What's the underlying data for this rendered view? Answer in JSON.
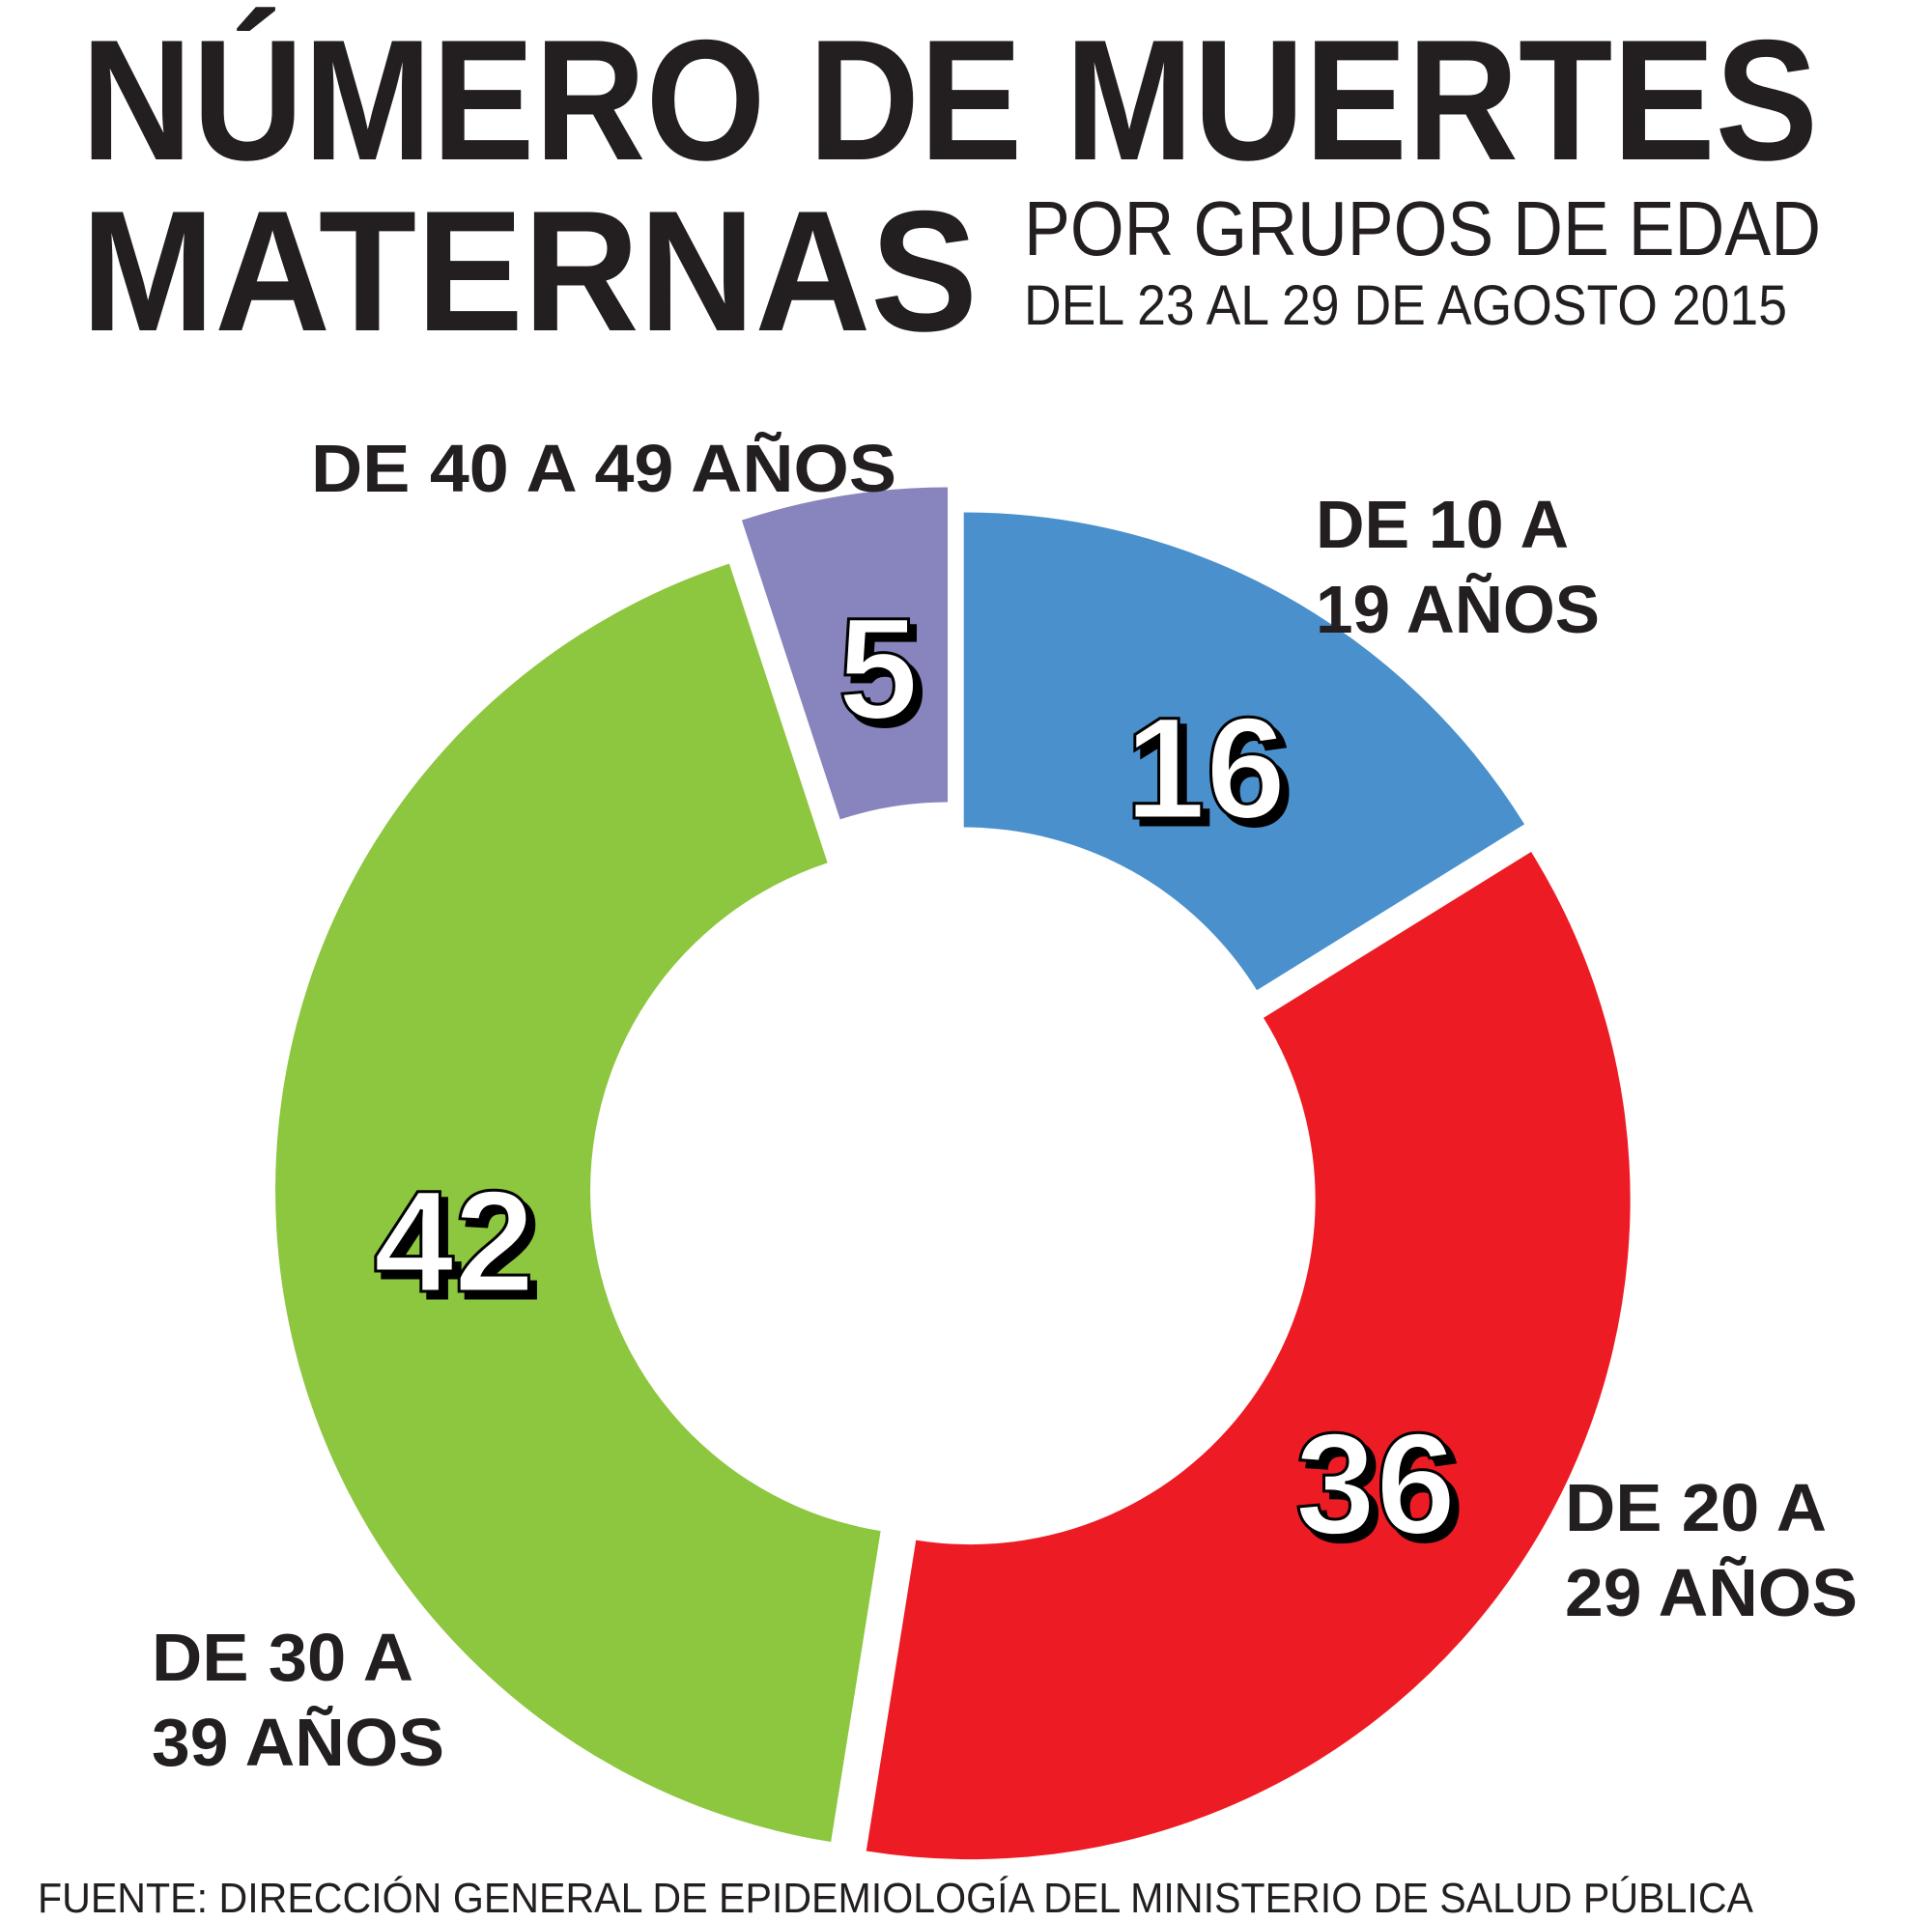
{
  "header": {
    "title_line1": "NÚMERO DE MUERTES",
    "title_line2": "MATERNAS",
    "subtitle": "POR GRUPOS DE EDAD",
    "date_range": "DEL 23 AL 29 DE AGOSTO 2015"
  },
  "footer": {
    "source": "FUENTE: DIRECCIÓN GENERAL DE EPIDEMIOLOGÍA DEL MINISTERIO DE SALUD PÚBLICA"
  },
  "chart_data": {
    "type": "pie",
    "variant": "donut",
    "title": "NÚMERO DE MUERTES MATERNAS POR GRUPOS DE EDAD",
    "start": "top",
    "direction": "clockwise",
    "slices": [
      {
        "label_line1": "DE 10 A",
        "label_line2": "19 AÑOS",
        "value": 16,
        "value_label": "16",
        "color": "#4a90cd"
      },
      {
        "label_line1": "DE 20 A",
        "label_line2": "29 AÑOS",
        "value": 36,
        "value_label": "36",
        "color": "#ed1c24"
      },
      {
        "label_line1": "DE 30 A",
        "label_line2": "39 AÑOS",
        "value": 42,
        "value_label": "42",
        "color": "#8dc63f"
      },
      {
        "label_line1": "DE 40 A 49 AÑOS",
        "label_line2": "",
        "value": 5,
        "value_label": "5",
        "color": "#8884be"
      }
    ]
  }
}
